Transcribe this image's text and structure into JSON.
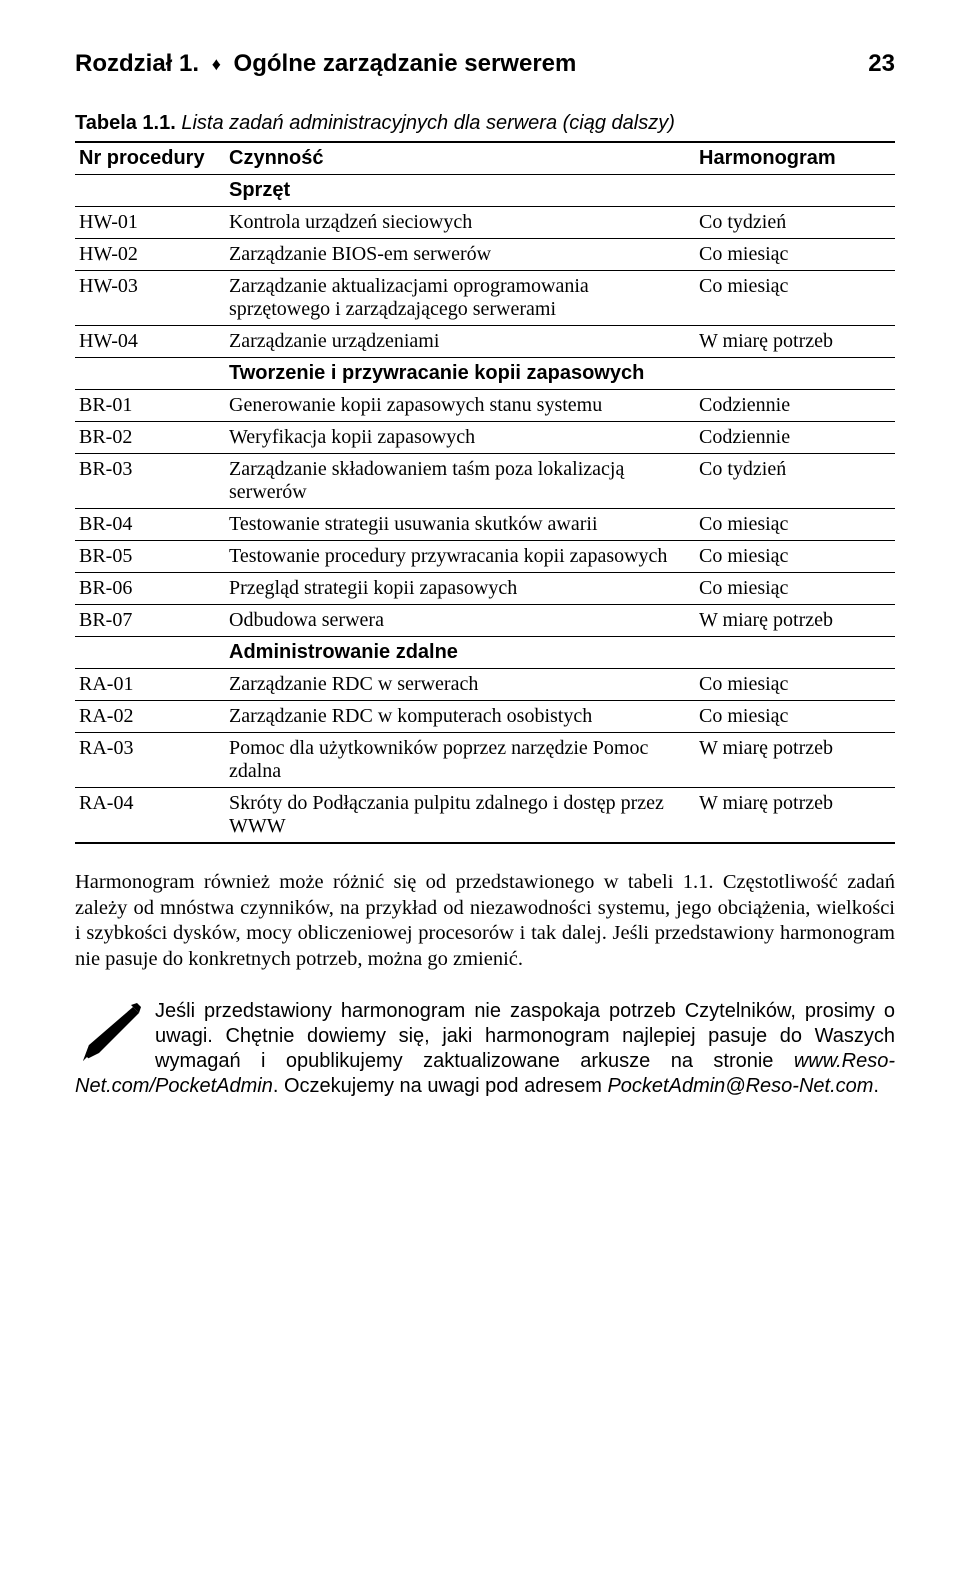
{
  "header": {
    "left_prefix": "Rozdział 1. ",
    "left_suffix": "Ogólne zarządzanie serwerem",
    "page_number": "23"
  },
  "caption": {
    "bold": "Tabela 1.1.",
    "italic": " Lista zadań administracyjnych dla serwera (ciąg dalszy)"
  },
  "columns": {
    "nr": "Nr procedury",
    "czynnosc": "Czynność",
    "harm": "Harmonogram"
  },
  "sections": [
    {
      "title": "Sprzęt",
      "title_spans_all": false,
      "rows": [
        {
          "nr": "HW-01",
          "czynnosc": "Kontrola urządzeń sieciowych",
          "harm": "Co tydzień"
        },
        {
          "nr": "HW-02",
          "czynnosc": "Zarządzanie BIOS-em serwerów",
          "harm": "Co miesiąc"
        },
        {
          "nr": "HW-03",
          "czynnosc": "Zarządzanie aktualizacjami oprogramowania sprzętowego i zarządzającego serwerami",
          "harm": "Co miesiąc"
        },
        {
          "nr": "HW-04",
          "czynnosc": "Zarządzanie urządzeniami",
          "harm": "W miarę potrzeb"
        }
      ]
    },
    {
      "title": "Tworzenie i przywracanie kopii zapasowych",
      "title_spans_all": false,
      "rows": [
        {
          "nr": "BR-01",
          "czynnosc": "Generowanie kopii zapasowych stanu systemu",
          "harm": "Codziennie"
        },
        {
          "nr": "BR-02",
          "czynnosc": "Weryfikacja kopii zapasowych",
          "harm": "Codziennie"
        },
        {
          "nr": "BR-03",
          "czynnosc": "Zarządzanie składowaniem taśm poza lokalizacją serwerów",
          "harm": "Co tydzień"
        },
        {
          "nr": "BR-04",
          "czynnosc": "Testowanie strategii usuwania skutków awarii",
          "harm": "Co miesiąc"
        },
        {
          "nr": "BR-05",
          "czynnosc": "Testowanie procedury przywracania kopii zapasowych",
          "harm": "Co miesiąc"
        },
        {
          "nr": "BR-06",
          "czynnosc": "Przegląd strategii kopii zapasowych",
          "harm": "Co miesiąc"
        },
        {
          "nr": "BR-07",
          "czynnosc": "Odbudowa serwera",
          "harm": "W miarę potrzeb"
        }
      ]
    },
    {
      "title": "Administrowanie zdalne",
      "title_spans_all": false,
      "rows": [
        {
          "nr": "RA-01",
          "czynnosc": "Zarządzanie RDC w serwerach",
          "harm": "Co miesiąc"
        },
        {
          "nr": "RA-02",
          "czynnosc": "Zarządzanie RDC w komputerach osobistych",
          "harm": "Co miesiąc"
        },
        {
          "nr": "RA-03",
          "czynnosc": "Pomoc dla użytkowników poprzez narzędzie Pomoc zdalna",
          "harm": "W miarę potrzeb"
        },
        {
          "nr": "RA-04",
          "czynnosc": "Skróty do Podłączania pulpitu zdalnego i dostęp przez WWW",
          "harm": "W miarę potrzeb"
        }
      ]
    }
  ],
  "paragraph": "Harmonogram również może różnić się od przedstawionego w tabeli 1.1. Częstotliwość zadań zależy od mnóstwa czynników, na przykład od niezawodności systemu, jego obciążenia, wielkości i szybkości dysków, mocy obliczeniowej procesorów i tak dalej. Jeśli przedstawiony harmonogram nie pasuje do konkretnych potrzeb, można go zmienić.",
  "note": {
    "text_before_link1": "Jeśli przedstawiony harmonogram nie zaspokaja potrzeb Czytelników, prosimy o uwagi. Chętnie dowiemy się, jaki harmonogram najlepiej pasuje do Waszych wymagań i opublikujemy zaktualizowane arkusze na stronie ",
    "link1": "www.Reso-Net.com/PocketAdmin",
    "text_between": ". Oczekujemy na uwagi pod adresem ",
    "link2": "PocketAdmin@Reso-Net.com",
    "text_after": "."
  }
}
